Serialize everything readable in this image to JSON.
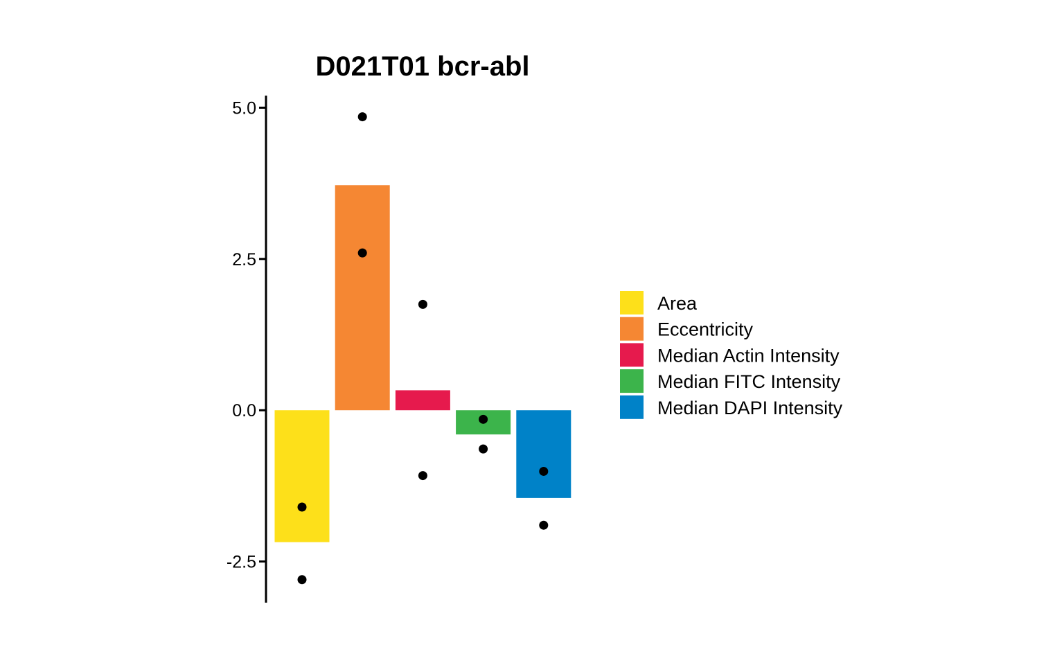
{
  "chart_data": {
    "type": "bar",
    "title": "D021T01 bcr-abl",
    "xlabel": "",
    "ylabel": "",
    "categories": [
      "Area",
      "Eccentricity",
      "Median Actin Intensity",
      "Median FITC Intensity",
      "Median DAPI Intensity"
    ],
    "values": [
      -2.18,
      3.72,
      0.33,
      -0.4,
      -1.45
    ],
    "colors": [
      "#FDE01A",
      "#F58733",
      "#E61A4D",
      "#3CB44B",
      "#0082C8"
    ],
    "points": [
      [
        -1.6,
        -2.8
      ],
      [
        4.85,
        2.6
      ],
      [
        1.75,
        -1.08
      ],
      [
        -0.15,
        -0.64
      ],
      [
        -1.01,
        -1.9
      ]
    ],
    "yticks": [
      "5.0",
      "2.5",
      "0.0",
      "-2.5"
    ],
    "ytick_values": [
      5.0,
      2.5,
      0.0,
      -2.5
    ],
    "ylim": [
      -3.18,
      5.2
    ],
    "grid": false,
    "legend": {
      "position": "right"
    },
    "point_color": "#000000"
  }
}
